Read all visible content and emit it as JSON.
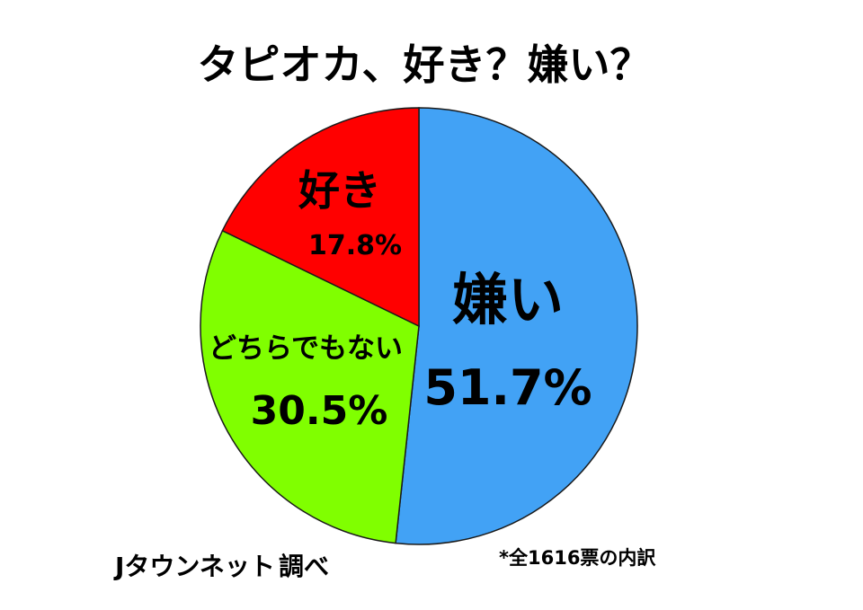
{
  "chart_data": {
    "type": "pie",
    "title": "タピオカ、好き？嫌い？",
    "start": "top",
    "direction": "clockwise",
    "slices": [
      {
        "label": "嫌い",
        "value": 51.7,
        "value_label": "51.7%",
        "color": "#42a2f5"
      },
      {
        "label": "どちらでもない",
        "value": 30.5,
        "value_label": "30.5%",
        "color": "#80ff00"
      },
      {
        "label": "好き",
        "value": 17.8,
        "value_label": "17.8%",
        "color": "#ff0000"
      }
    ]
  },
  "footer": {
    "source_logo": "Jタウンネット",
    "source_suffix": "調べ",
    "note": "*全1616票の内訳"
  }
}
